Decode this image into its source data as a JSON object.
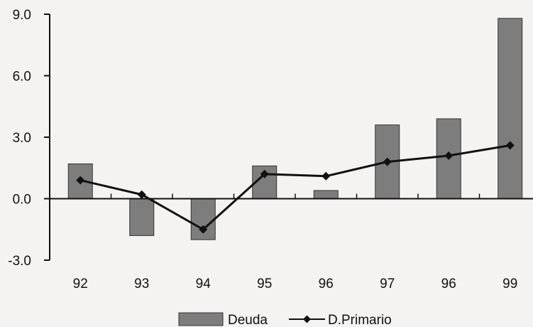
{
  "chart_data": {
    "type": "bar",
    "categories": [
      "92",
      "93",
      "94",
      "95",
      "96",
      "97",
      "96",
      "99"
    ],
    "series": [
      {
        "name": "Deuda",
        "type": "bar",
        "values": [
          1.7,
          -1.8,
          -2.0,
          1.6,
          0.4,
          3.6,
          3.9,
          8.8
        ],
        "color": "#7d7d7d"
      },
      {
        "name": "D.Primario",
        "type": "line",
        "values": [
          0.9,
          0.2,
          -1.5,
          1.2,
          1.1,
          1.8,
          2.1,
          2.6
        ],
        "color": "#111111"
      }
    ],
    "ylim": [
      -3.0,
      9.0
    ],
    "yticks": [
      -3.0,
      0.0,
      3.0,
      6.0,
      9.0
    ],
    "ytick_labels": [
      "-3.0",
      "0.0",
      "3.0",
      "6.0",
      "9.0"
    ],
    "title": "",
    "xlabel": "",
    "ylabel": "",
    "grid": false,
    "legend_position": "bottom"
  }
}
